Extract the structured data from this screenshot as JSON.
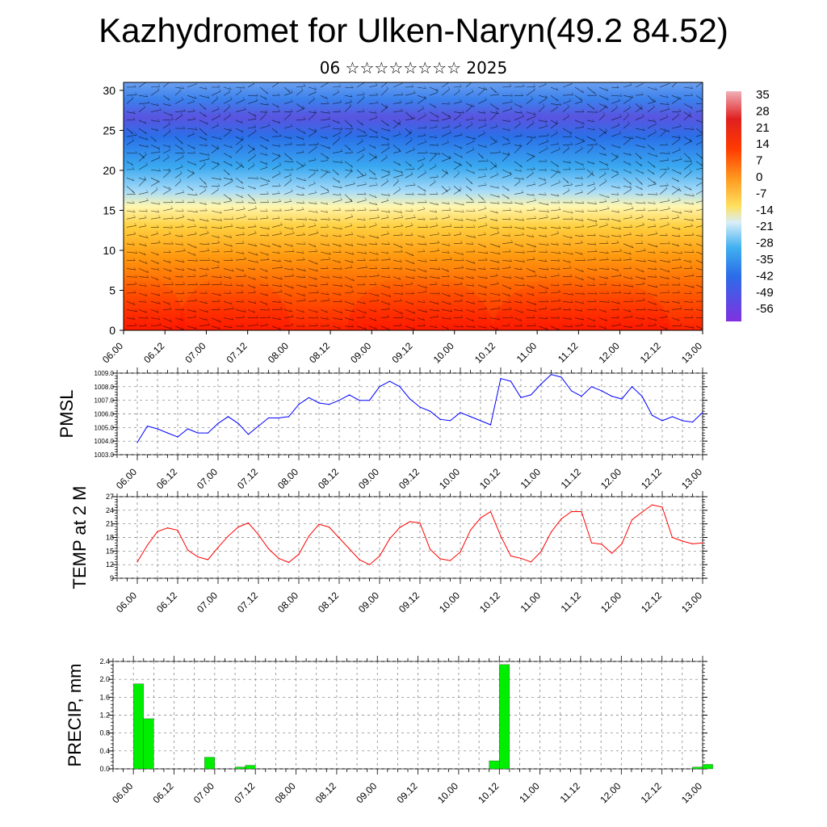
{
  "title": "Kazhydromet for Ulken-Naryn(49.2 84.52)",
  "subtitle": "06 ☆☆☆☆☆☆☆☆ 2025",
  "time_labels": [
    "06.00",
    "06.12",
    "07.00",
    "07.12",
    "08.00",
    "08.12",
    "09.00",
    "09.12",
    "10.00",
    "10.12",
    "11.00",
    "11.12",
    "12.00",
    "12.12",
    "13.00"
  ],
  "chart_data": [
    {
      "type": "heatmap",
      "title": "",
      "xlabel": "",
      "ylabel": "",
      "ylim": [
        0,
        31
      ],
      "y_ticks": [
        "0",
        "5",
        "10",
        "15",
        "20",
        "25",
        "30"
      ],
      "colorbar_labels": [
        "35",
        "28",
        "21",
        "14",
        "7",
        "0",
        "-7",
        "-14",
        "-21",
        "-28",
        "-35",
        "-42",
        "-49",
        "-56"
      ],
      "colorbar_range": [
        -60,
        38
      ],
      "colors": {
        "hot": "#ff1a00",
        "warm": "#ffa01e",
        "neutral": "#fff5a0",
        "cool": "#3ca0f0",
        "cold": "#6a3ce0"
      },
      "note_wind_barbs": true
    },
    {
      "type": "line",
      "ylabel": "PMSL",
      "ylim": [
        1003.0,
        1009.0
      ],
      "y_ticks": [
        "1003.0",
        "1004.0",
        "1005.0",
        "1006.0",
        "1007.0",
        "1008.0",
        "1009.0"
      ],
      "color": "#0000ff",
      "x": [
        0,
        3,
        6,
        9,
        12,
        15,
        18,
        21,
        24,
        27,
        30,
        33,
        36,
        39,
        42,
        45,
        48,
        51,
        54,
        57,
        60,
        63,
        66,
        69,
        72,
        75,
        78,
        81,
        84,
        87,
        90,
        93,
        96,
        99,
        102,
        105,
        108,
        111,
        114,
        117,
        120,
        123,
        126,
        129,
        132,
        135,
        138,
        141,
        144,
        147,
        150,
        153,
        156,
        159,
        162,
        165,
        168
      ],
      "values": [
        1003.9,
        1005.1,
        1004.9,
        1004.6,
        1004.3,
        1004.9,
        1004.6,
        1004.6,
        1005.3,
        1005.8,
        1005.3,
        1004.5,
        1005.1,
        1005.7,
        1005.7,
        1005.8,
        1006.7,
        1007.2,
        1006.8,
        1006.7,
        1007.0,
        1007.4,
        1007.0,
        1007.0,
        1008.0,
        1008.4,
        1008.0,
        1007.1,
        1006.5,
        1006.2,
        1005.6,
        1005.5,
        1006.1,
        1005.8,
        1005.5,
        1005.2,
        1008.6,
        1008.4,
        1007.2,
        1007.4,
        1008.2,
        1008.9,
        1008.7,
        1007.7,
        1007.3,
        1008.0,
        1007.7,
        1007.3,
        1007.1,
        1008.0,
        1007.3,
        1005.9,
        1005.5,
        1005.8,
        1005.5,
        1005.4,
        1006.1
      ]
    },
    {
      "type": "line",
      "ylabel": "TEMP at 2 M",
      "ylim": [
        9,
        27
      ],
      "y_ticks": [
        "9",
        "12",
        "15",
        "18",
        "21",
        "24",
        "27"
      ],
      "color": "#ff0000",
      "x": [
        0,
        3,
        6,
        9,
        12,
        15,
        18,
        21,
        24,
        27,
        30,
        33,
        36,
        39,
        42,
        45,
        48,
        51,
        54,
        57,
        60,
        63,
        66,
        69,
        72,
        75,
        78,
        81,
        84,
        87,
        90,
        93,
        96,
        99,
        102,
        105,
        108,
        111,
        114,
        117,
        120,
        123,
        126,
        129,
        132,
        135,
        138,
        141,
        144,
        147,
        150,
        153,
        156,
        159,
        162,
        165,
        168
      ],
      "values": [
        12.6,
        16.3,
        19.3,
        20.1,
        19.6,
        15.2,
        13.7,
        13.1,
        15.8,
        18.3,
        20.3,
        21.2,
        18.6,
        15.5,
        13.4,
        12.5,
        14.3,
        18.3,
        20.9,
        20.3,
        17.9,
        15.5,
        13.1,
        12.0,
        13.9,
        17.7,
        20.2,
        21.5,
        21.2,
        15.4,
        13.3,
        12.9,
        14.8,
        19.6,
        22.3,
        23.7,
        18.3,
        13.9,
        13.4,
        12.6,
        14.9,
        19.2,
        22.1,
        23.7,
        23.7,
        16.8,
        16.5,
        14.5,
        16.6,
        21.9,
        23.6,
        25.2,
        24.7,
        18.0,
        17.2,
        16.6,
        16.8
      ]
    },
    {
      "type": "bar",
      "ylabel": "PRECIP, mm",
      "ylim": [
        0.0,
        2.4
      ],
      "y_ticks": [
        "0.0",
        "0.4",
        "0.8",
        "1.2",
        "1.6",
        "2.0",
        "2.4"
      ],
      "color": "#00ee00",
      "x": [
        0,
        3,
        21,
        30,
        33,
        105,
        108,
        165,
        168
      ],
      "values": [
        1.9,
        1.12,
        0.26,
        0.04,
        0.08,
        0.18,
        2.33,
        0.04,
        0.1
      ]
    }
  ]
}
